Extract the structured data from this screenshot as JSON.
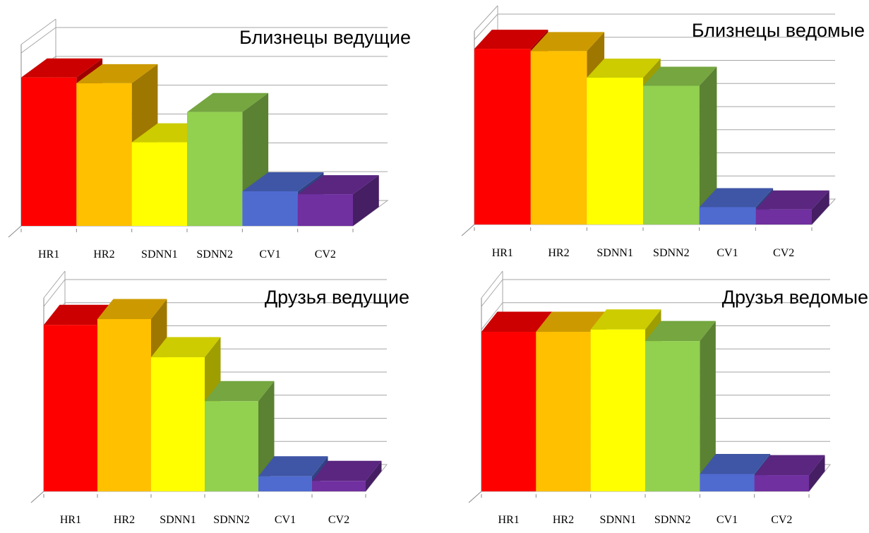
{
  "colors": {
    "HR1": "#ff0000",
    "HR2": "#ffc000",
    "SDNN1": "#ffff00",
    "SDNN2": "#92d050",
    "CV1": "#4f6bd0",
    "CV2": "#7030a0"
  },
  "chart_data": [
    {
      "type": "bar",
      "title": "Близнецы ведущие",
      "categories": [
        "HR1",
        "HR2",
        "SDNN1",
        "SDNN2",
        "CV1",
        "CV2"
      ],
      "values": [
        5.15,
        4.95,
        2.9,
        3.95,
        1.2,
        1.1
      ],
      "ylim": [
        0,
        6
      ],
      "grid": true,
      "projection": "3d-column"
    },
    {
      "type": "bar",
      "title": "Близнецы ведомые",
      "categories": [
        "HR1",
        "HR2",
        "SDNN1",
        "SDNN2",
        "CV1",
        "CV2"
      ],
      "values": [
        7.6,
        7.5,
        6.35,
        6.0,
        0.75,
        0.65
      ],
      "ylim": [
        0,
        8
      ],
      "grid": true,
      "projection": "3d-column"
    },
    {
      "type": "bar",
      "title": "Друзья ведущие",
      "categories": [
        "HR1",
        "HR2",
        "SDNN1",
        "SDNN2",
        "CV1",
        "CV2"
      ],
      "values": [
        7.2,
        7.45,
        5.8,
        3.9,
        0.65,
        0.45
      ],
      "ylim": [
        0,
        8
      ],
      "grid": true,
      "projection": "3d-column"
    },
    {
      "type": "bar",
      "title": "Друзья ведомые",
      "categories": [
        "HR1",
        "HR2",
        "SDNN1",
        "SDNN2",
        "CV1",
        "CV2"
      ],
      "values": [
        6.9,
        6.9,
        7.0,
        6.5,
        0.75,
        0.7
      ],
      "ylim": [
        0,
        8
      ],
      "grid": true,
      "projection": "3d-column"
    }
  ]
}
